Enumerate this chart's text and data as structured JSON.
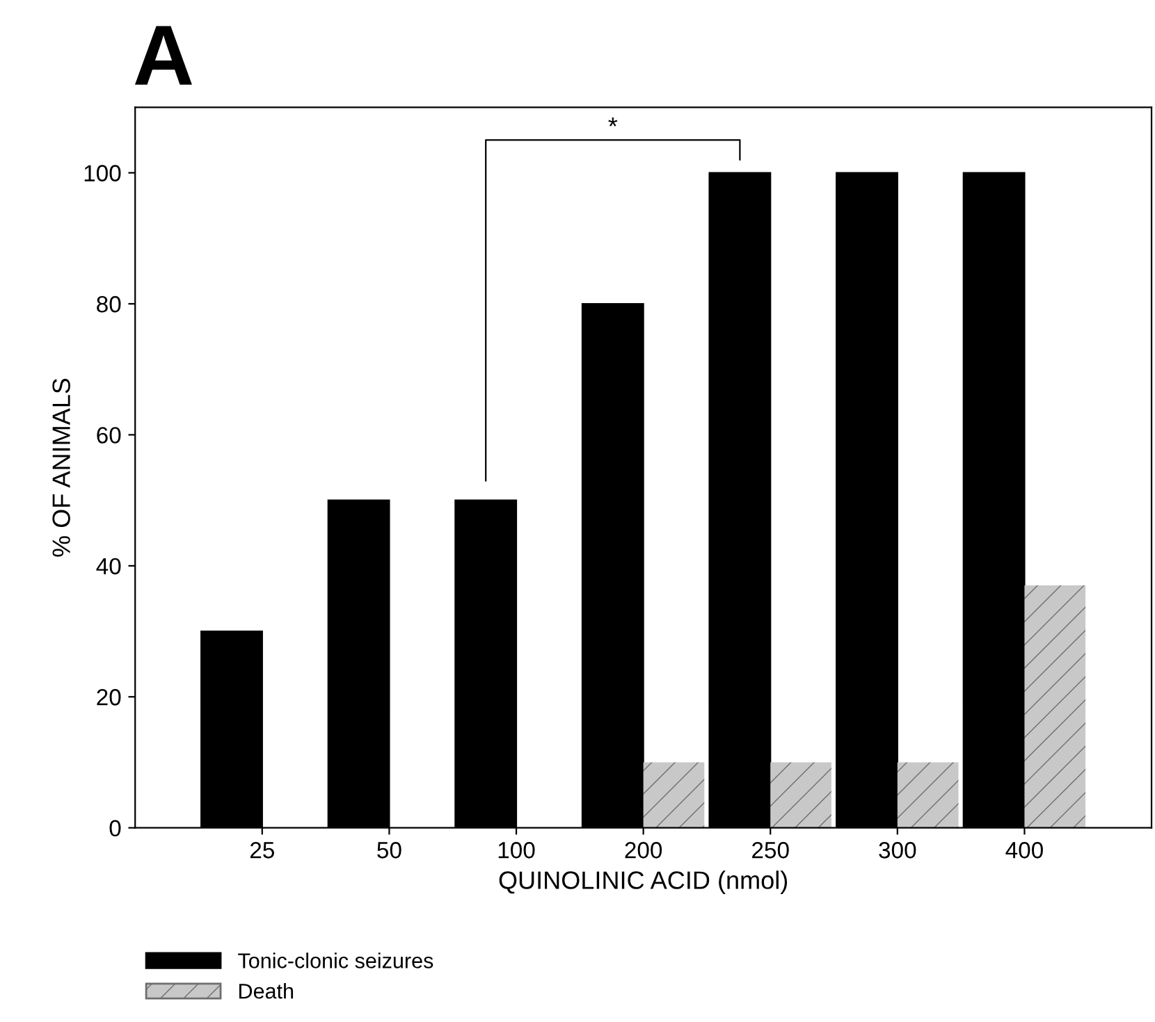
{
  "chart_data": {
    "type": "bar",
    "title": "A",
    "xlabel": "QUINOLINIC ACID (nmol)",
    "ylabel": "% OF ANIMALS",
    "categories": [
      "25",
      "50",
      "100",
      "200",
      "250",
      "300",
      "400"
    ],
    "series": [
      {
        "name": "Tonic-clonic seizures",
        "color": "#000000",
        "values": [
          30,
          50,
          50,
          80,
          100,
          100,
          100
        ]
      },
      {
        "name": "Death",
        "color": "#c8c8c8",
        "values": [
          null,
          null,
          null,
          10,
          10,
          10,
          37
        ]
      }
    ],
    "ylim": [
      0,
      110
    ],
    "yticks": [
      0,
      20,
      40,
      60,
      80,
      100
    ],
    "grid": false,
    "legend": "bottom left",
    "annotations": [
      "*"
    ]
  }
}
